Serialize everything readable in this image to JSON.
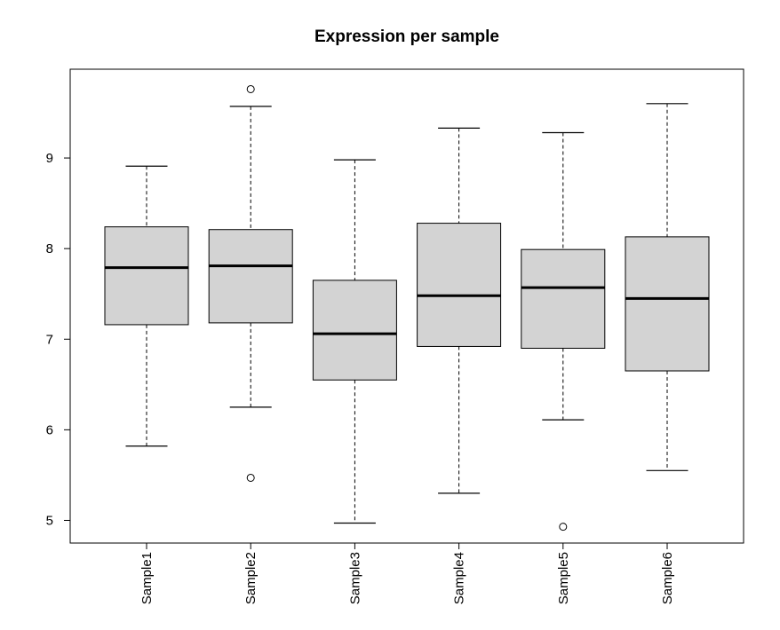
{
  "chart_data": {
    "type": "boxplot",
    "title": "Expression per sample",
    "xlabel": "",
    "ylabel": "",
    "ylim": [
      4.75,
      9.98
    ],
    "yticks": [
      5,
      6,
      7,
      8,
      9
    ],
    "categories": [
      "Sample1",
      "Sample2",
      "Sample3",
      "Sample4",
      "Sample5",
      "Sample6"
    ],
    "boxes": [
      {
        "min": 5.82,
        "q1": 7.16,
        "median": 7.79,
        "q3": 8.24,
        "max": 8.91,
        "outliers": []
      },
      {
        "min": 6.25,
        "q1": 7.18,
        "median": 7.81,
        "q3": 8.21,
        "max": 9.57,
        "outliers": [
          9.76,
          5.47
        ]
      },
      {
        "min": 4.97,
        "q1": 6.55,
        "median": 7.06,
        "q3": 7.65,
        "max": 8.98,
        "outliers": []
      },
      {
        "min": 5.3,
        "q1": 6.92,
        "median": 7.48,
        "q3": 8.28,
        "max": 9.33,
        "outliers": []
      },
      {
        "min": 6.11,
        "q1": 6.9,
        "median": 7.57,
        "q3": 7.99,
        "max": 9.28,
        "outliers": [
          4.93
        ]
      },
      {
        "min": 5.55,
        "q1": 6.65,
        "median": 7.45,
        "q3": 8.13,
        "max": 9.6,
        "outliers": []
      }
    ],
    "box_fill": "#d3d3d3",
    "line_color": "#000000",
    "grid": false,
    "legend": "none",
    "x_tick_orientation": "vertical"
  }
}
